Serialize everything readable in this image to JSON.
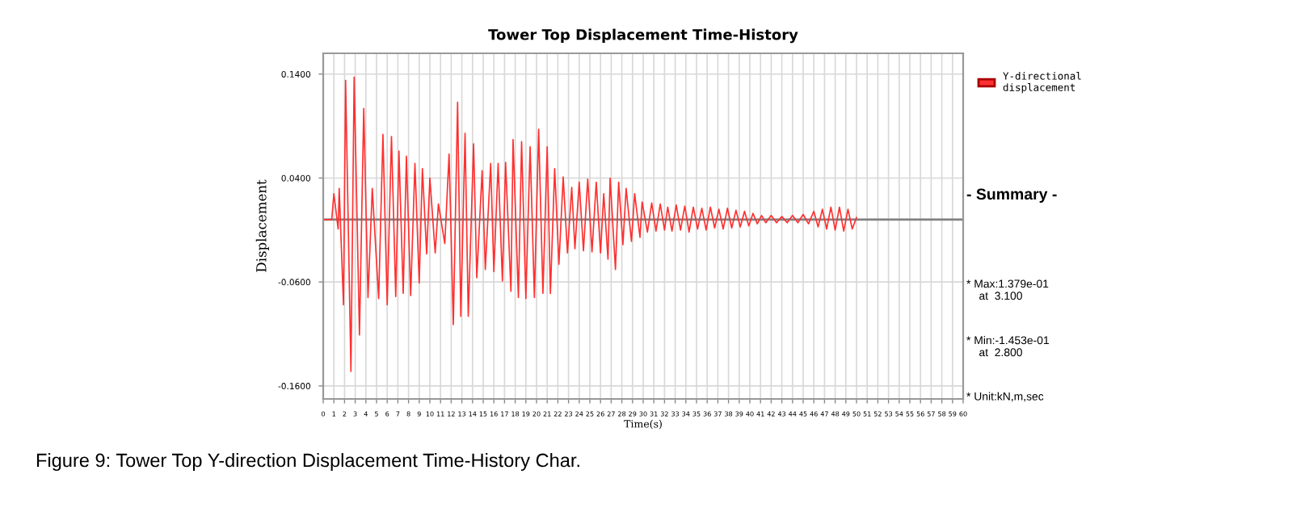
{
  "chart_data": {
    "type": "line",
    "title": "Tower Top Displacement Time-History",
    "xlabel": "Time(s)",
    "ylabel": "Displacement",
    "x": [
      0,
      0.8,
      1.0,
      1.4,
      1.5,
      1.9,
      2.1,
      2.6,
      2.9,
      3.4,
      3.8,
      4.2,
      4.6,
      5.2,
      5.6,
      6.0,
      6.4,
      6.8,
      7.1,
      7.5,
      7.8,
      8.2,
      8.6,
      9.0,
      9.3,
      9.7,
      10.0,
      10.5,
      10.8,
      11.4,
      11.8,
      12.2,
      12.6,
      12.9,
      13.3,
      13.6,
      14.1,
      14.4,
      14.9,
      15.2,
      15.7,
      16.0,
      16.4,
      16.8,
      17.1,
      17.6,
      17.8,
      18.3,
      18.6,
      19.0,
      19.4,
      19.8,
      20.2,
      20.6,
      21.0,
      21.3,
      21.7,
      22.1,
      22.5,
      22.9,
      23.3,
      23.6,
      24.0,
      24.4,
      24.8,
      25.2,
      25.6,
      26.0,
      26.3,
      26.7,
      26.9,
      27.4,
      27.7,
      28.1,
      28.4,
      28.9,
      29.2,
      29.7,
      29.9,
      30.4,
      30.8,
      31.2,
      31.6,
      32.0,
      32.3,
      32.7,
      33.1,
      33.5,
      33.9,
      34.3,
      34.7,
      35.1,
      35.5,
      35.9,
      36.3,
      36.7,
      37.1,
      37.5,
      37.9,
      38.3,
      38.7,
      39.1,
      39.5,
      39.9,
      40.3,
      40.7,
      41.1,
      41.5,
      42.0,
      42.5,
      43.0,
      43.5,
      44.0,
      44.5,
      45.0,
      45.5,
      46.0,
      46.4,
      46.8,
      47.2,
      47.6,
      48.0,
      48.4,
      48.8,
      49.2,
      49.6,
      50.0
    ],
    "series": [
      {
        "name": "Y-directional\ndisplacement",
        "color": "#ff3030",
        "values": [
          0,
          0,
          0.025,
          -0.009,
          0.03,
          -0.082,
          0.134,
          -0.146,
          0.137,
          -0.111,
          0.107,
          -0.075,
          0.03,
          -0.076,
          0.082,
          -0.082,
          0.08,
          -0.074,
          0.066,
          -0.071,
          0.061,
          -0.073,
          0.054,
          -0.061,
          0.049,
          -0.033,
          0.04,
          -0.032,
          0.015,
          -0.023,
          0.063,
          -0.101,
          0.113,
          -0.093,
          0.083,
          -0.093,
          0.073,
          -0.056,
          0.047,
          -0.048,
          0.054,
          -0.05,
          0.054,
          -0.059,
          0.055,
          -0.069,
          0.077,
          -0.075,
          0.075,
          -0.076,
          0.07,
          -0.075,
          0.087,
          -0.071,
          0.07,
          -0.071,
          0.049,
          -0.043,
          0.041,
          -0.032,
          0.031,
          -0.028,
          0.036,
          -0.03,
          0.039,
          -0.031,
          0.036,
          -0.032,
          0.025,
          -0.038,
          0.04,
          -0.048,
          0.036,
          -0.024,
          0.03,
          -0.021,
          0.025,
          -0.017,
          0.017,
          -0.012,
          0.016,
          -0.011,
          0.015,
          -0.01,
          0.012,
          -0.011,
          0.014,
          -0.01,
          0.013,
          -0.012,
          0.012,
          -0.009,
          0.011,
          -0.01,
          0.012,
          -0.008,
          0.01,
          -0.009,
          0.011,
          -0.008,
          0.009,
          -0.007,
          0.008,
          -0.006,
          0.006,
          -0.004,
          0.004,
          -0.003,
          0.004,
          -0.003,
          0.003,
          -0.003,
          0.004,
          -0.003,
          0.005,
          -0.004,
          0.008,
          -0.007,
          0.01,
          -0.009,
          0.012,
          -0.01,
          0.012,
          -0.011,
          0.01,
          -0.009,
          0.002
        ]
      }
    ],
    "xlim": [
      0,
      60
    ],
    "xticks": [
      0,
      1,
      2,
      3,
      4,
      5,
      6,
      7,
      8,
      9,
      10,
      11,
      12,
      13,
      14,
      15,
      16,
      17,
      18,
      19,
      20,
      21,
      22,
      23,
      24,
      25,
      26,
      27,
      28,
      29,
      30,
      31,
      32,
      33,
      34,
      35,
      36,
      37,
      38,
      39,
      40,
      41,
      42,
      43,
      44,
      45,
      46,
      47,
      48,
      49,
      50,
      51,
      52,
      53,
      54,
      55,
      56,
      57,
      58,
      59,
      60
    ],
    "ylim": [
      -0.1725,
      0.16
    ],
    "yticks": [
      {
        "value": 0.14,
        "label": "0.1400"
      },
      {
        "value": 0.04,
        "label": "0.0400"
      },
      {
        "value": -0.06,
        "label": "-0.0600"
      },
      {
        "value": -0.16,
        "label": "-0.1600"
      }
    ],
    "ref_lines": [
      {
        "axis": "y",
        "value": 0,
        "color": "#808080"
      }
    ],
    "grid": true,
    "legend": "top right",
    "annotations": [
      "- Summary -",
      "* Max:1.379e-01\n    at  3.100",
      "* Min:-1.453e-01\n    at  2.800",
      "* Unit:kN,m,sec",
      "Figure 9: Tower Top Y-direction Displacement Time-History Char."
    ]
  }
}
